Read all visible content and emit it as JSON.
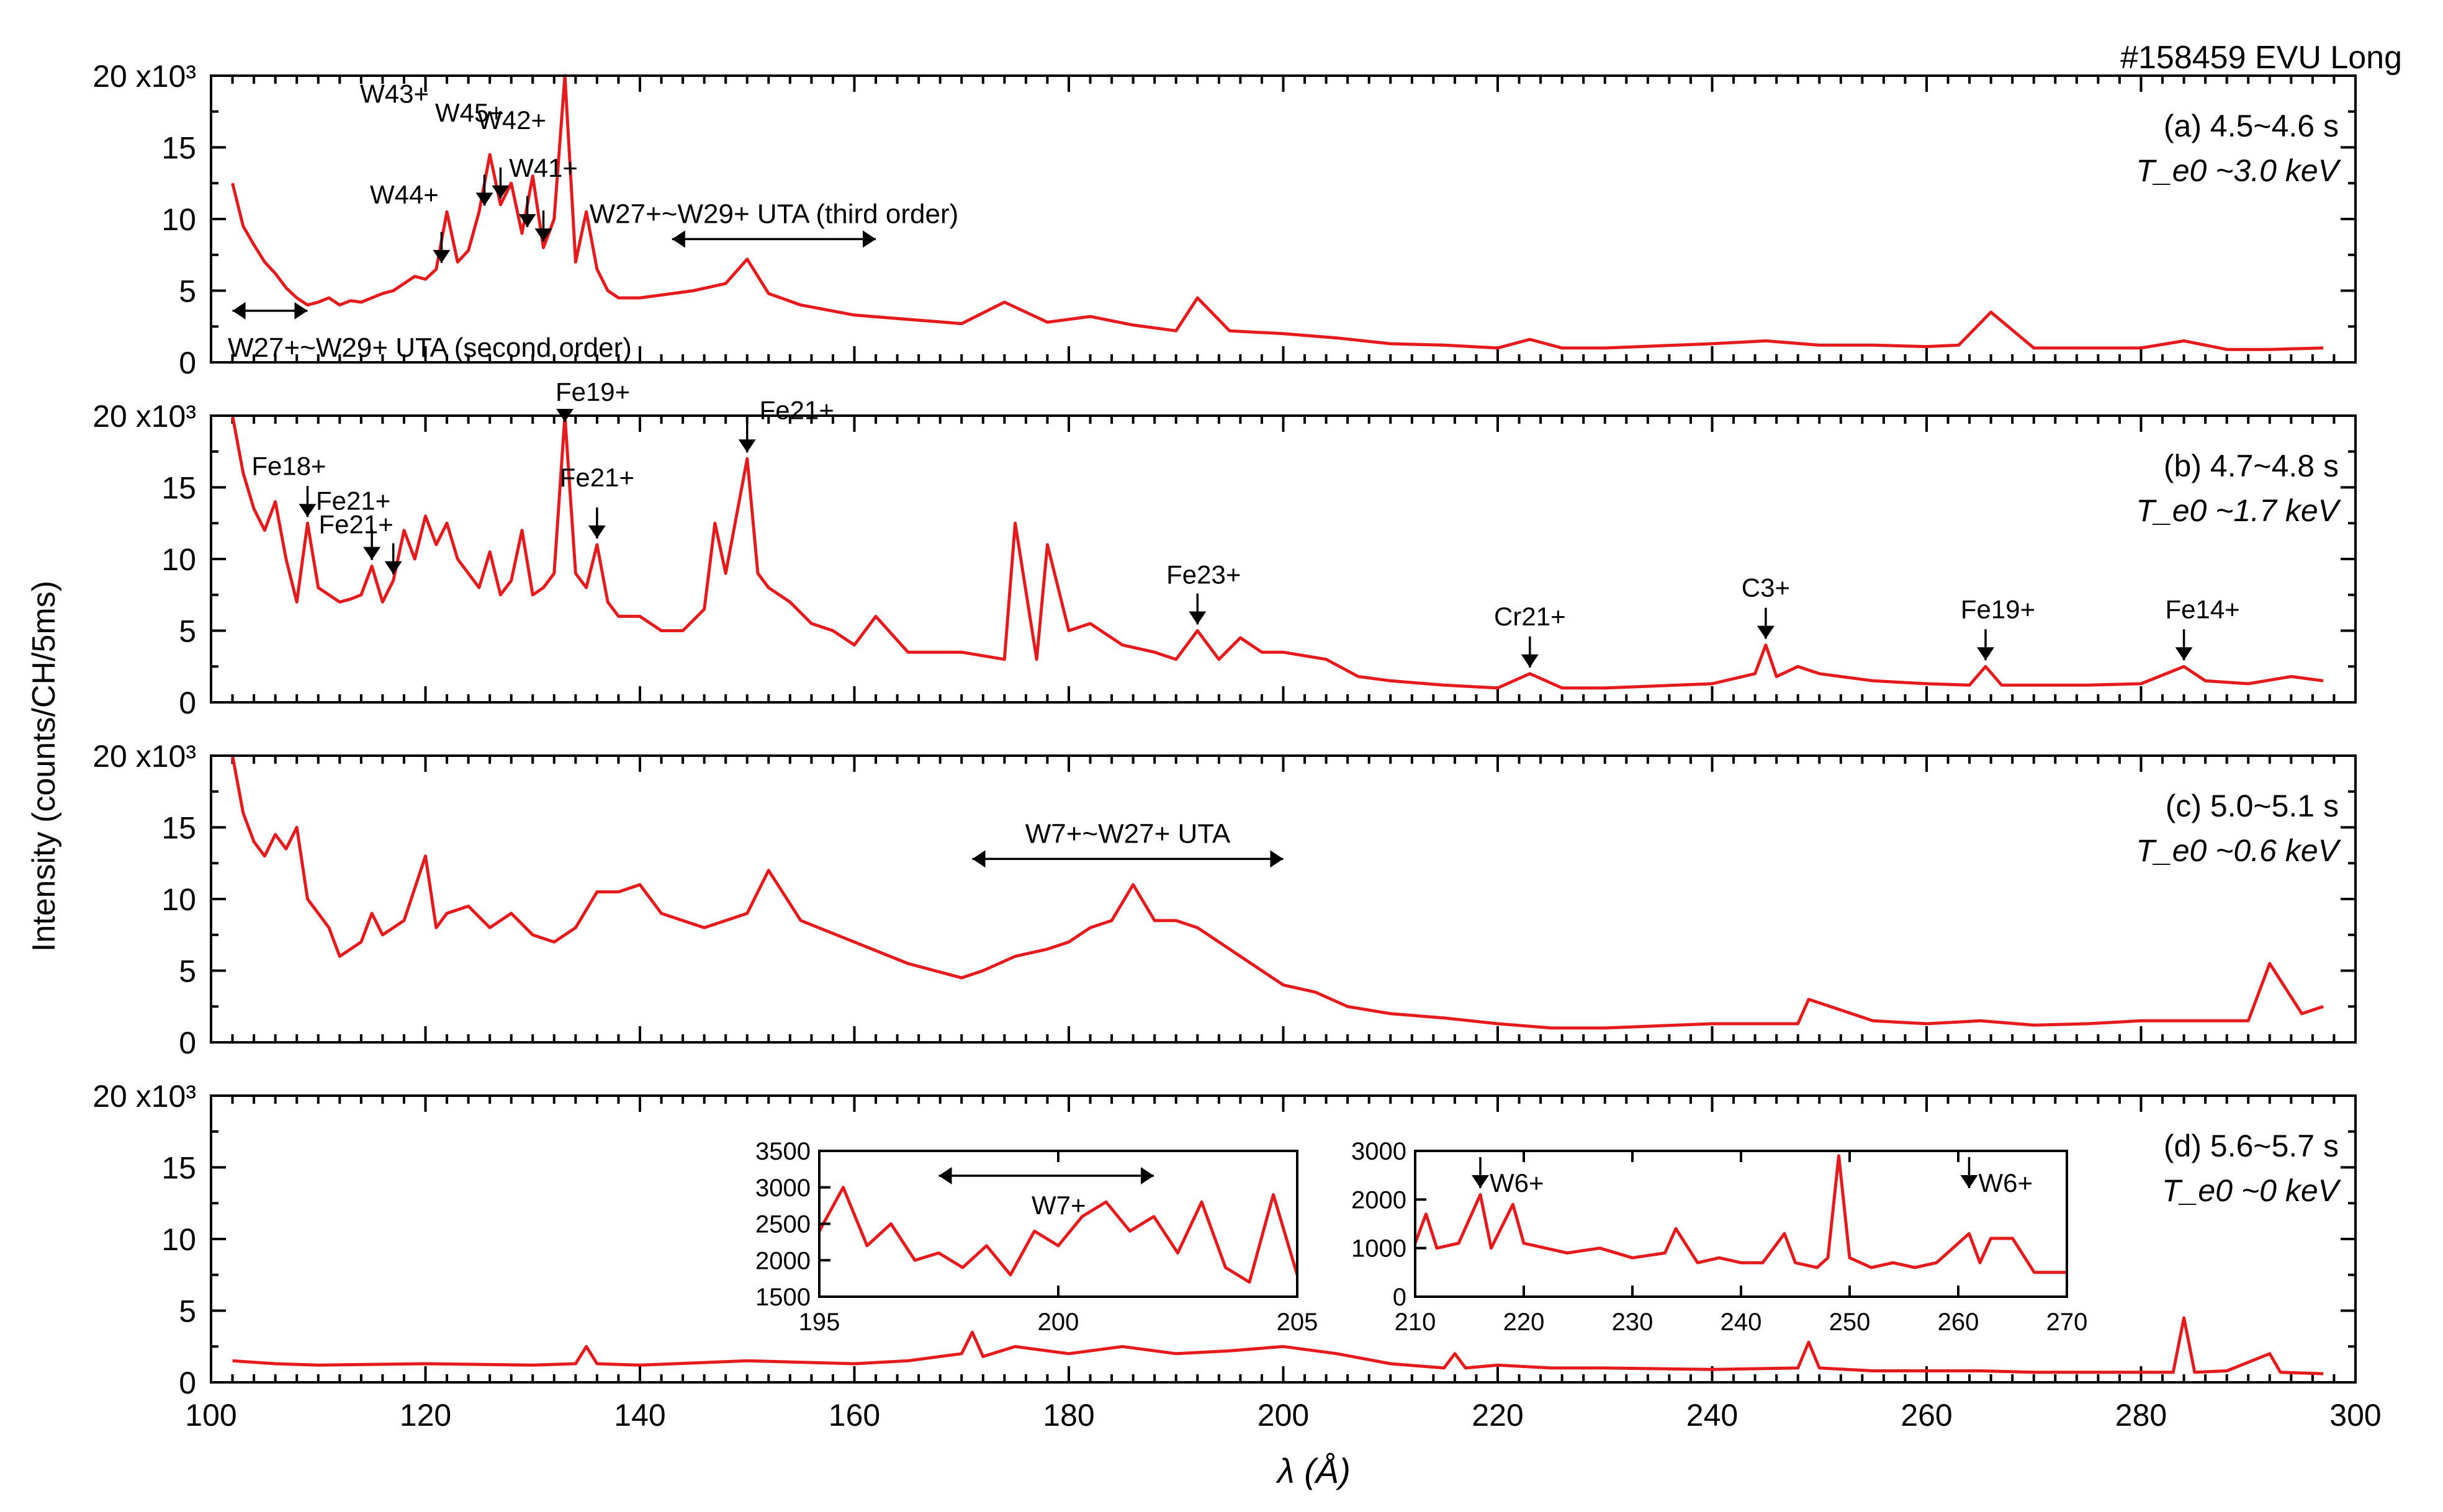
{
  "chart_data": {
    "type": "line",
    "shot_label": "#158459 EVU Long",
    "shared_x": {
      "label": "λ (Å)",
      "range": [
        100,
        300
      ],
      "ticks": [
        "100",
        "120",
        "140",
        "160",
        "180",
        "200",
        "220",
        "240",
        "260",
        "280",
        "300"
      ]
    },
    "shared_y_label": "Intensity (counts/CH/5ms)",
    "y_tick_labels": [
      "0",
      "5",
      "10",
      "15",
      "20 x10³"
    ],
    "y_range_thousands": [
      0,
      20
    ],
    "panels": [
      {
        "id": "a",
        "time_label": "(a) 4.5~4.6 s",
        "temp_label": "T_e0 ~3.0 keV",
        "series": {
          "name": "spectrum (a)",
          "x": [
            102,
            103,
            104,
            105,
            106,
            107,
            108,
            109,
            110,
            111,
            112,
            113,
            114,
            115,
            116,
            117,
            118,
            119,
            120,
            121,
            122,
            123,
            124,
            125,
            126,
            127,
            128,
            129,
            130,
            131,
            132,
            133,
            134,
            135,
            136,
            137,
            138,
            139,
            140,
            145,
            148,
            150,
            152,
            155,
            160,
            165,
            170,
            174,
            178,
            182,
            186,
            190,
            192,
            195,
            200,
            205,
            210,
            215,
            220,
            223,
            226,
            230,
            240,
            245,
            250,
            255,
            260,
            263,
            266,
            270,
            275,
            280,
            284,
            288,
            292,
            297
          ],
          "y": [
            12.5,
            9.5,
            8.2,
            7.0,
            6.2,
            5.2,
            4.5,
            4.0,
            4.2,
            4.5,
            4.0,
            4.3,
            4.2,
            4.5,
            4.8,
            5.0,
            5.5,
            6.0,
            5.8,
            6.5,
            10.5,
            7.0,
            7.8,
            10.5,
            14.5,
            11.0,
            12.5,
            9.0,
            13.0,
            8.0,
            10.0,
            20.0,
            7.0,
            10.5,
            6.5,
            5.0,
            4.5,
            4.5,
            4.5,
            5.0,
            5.5,
            7.2,
            4.8,
            4.0,
            3.3,
            3.0,
            2.7,
            4.2,
            2.8,
            3.2,
            2.6,
            2.2,
            4.5,
            2.2,
            2.0,
            1.7,
            1.3,
            1.2,
            1.0,
            1.6,
            1.0,
            1.0,
            1.3,
            1.5,
            1.2,
            1.2,
            1.1,
            1.2,
            3.5,
            1.0,
            1.0,
            1.0,
            1.5,
            0.9,
            0.9,
            1.0
          ]
        },
        "annotations": [
          {
            "text": "W41+",
            "x": 131
          },
          {
            "text": "W42+",
            "x": 129.5
          },
          {
            "text": "W45+",
            "x": 127
          },
          {
            "text": "W43+",
            "x": 125.5
          },
          {
            "text": "W44+",
            "x": 121.5
          },
          {
            "text": "W27+~W29+ UTA (third order)",
            "x_range": [
              143,
              162
            ]
          },
          {
            "text": "W27+~W29+ UTA (second order)",
            "x_range": [
              102,
              109
            ]
          }
        ]
      },
      {
        "id": "b",
        "time_label": "(b) 4.7~4.8 s",
        "temp_label": "T_e0 ~1.7 keV",
        "series": {
          "name": "spectrum (b)",
          "x": [
            102,
            103,
            104,
            105,
            106,
            107,
            108,
            109,
            110,
            111,
            112,
            113,
            114,
            115,
            116,
            117,
            118,
            119,
            120,
            121,
            122,
            123,
            124,
            125,
            126,
            127,
            128,
            129,
            130,
            131,
            132,
            133,
            134,
            135,
            136,
            137,
            138,
            140,
            142,
            144,
            146,
            147,
            148,
            149,
            150,
            151,
            152,
            154,
            156,
            158,
            160,
            162,
            165,
            170,
            174,
            175,
            177,
            178,
            180,
            182,
            185,
            188,
            190,
            192,
            194,
            196,
            198,
            200,
            204,
            207,
            210,
            215,
            220,
            223,
            226,
            230,
            240,
            244,
            245,
            246,
            248,
            250,
            255,
            260,
            264,
            265.5,
            267,
            270,
            275,
            280,
            284,
            286,
            290,
            294,
            297
          ],
          "y": [
            20.0,
            16.0,
            13.5,
            12.0,
            14.0,
            10.0,
            7.0,
            12.5,
            8.0,
            7.5,
            7.0,
            7.2,
            7.5,
            9.5,
            7.0,
            8.5,
            12.0,
            10.0,
            13.0,
            11.0,
            12.5,
            10.0,
            9.0,
            8.0,
            10.5,
            7.5,
            8.5,
            12.0,
            7.5,
            8.0,
            9.0,
            20.0,
            9.0,
            8.0,
            11.0,
            7.0,
            6.0,
            6.0,
            5.0,
            5.0,
            6.5,
            12.5,
            9.0,
            13.0,
            17.0,
            9.0,
            8.0,
            7.0,
            5.5,
            5.0,
            4.0,
            6.0,
            3.5,
            3.5,
            3.0,
            12.5,
            3.0,
            11.0,
            5.0,
            5.5,
            4.0,
            3.5,
            3.0,
            5.0,
            3.0,
            4.5,
            3.5,
            3.5,
            3.0,
            1.8,
            1.5,
            1.2,
            1.0,
            2.0,
            1.0,
            1.0,
            1.3,
            2.0,
            4.0,
            1.8,
            2.5,
            2.0,
            1.5,
            1.3,
            1.2,
            2.5,
            1.2,
            1.2,
            1.2,
            1.3,
            2.5,
            1.5,
            1.3,
            1.8,
            1.5
          ]
        },
        "annotations": [
          {
            "text": "Fe19+",
            "x": 133
          },
          {
            "text": "Fe21+",
            "x": 150
          },
          {
            "text": "Fe18+",
            "x": 109
          },
          {
            "text": "Fe21+",
            "x": 117
          },
          {
            "text": "Fe21+",
            "x": 115
          },
          {
            "text": "Fe21+",
            "x": 136
          },
          {
            "text": "Fe23+",
            "x": 192
          },
          {
            "text": "Cr21+",
            "x": 223
          },
          {
            "text": "C3+",
            "x": 245
          },
          {
            "text": "Fe19+",
            "x": 265.5
          },
          {
            "text": "Fe14+",
            "x": 284
          }
        ]
      },
      {
        "id": "c",
        "time_label": "(c) 5.0~5.1 s",
        "temp_label": "T_e0 ~0.6 keV",
        "series": {
          "name": "spectrum (c)",
          "x": [
            102,
            103,
            104,
            105,
            106,
            107,
            108,
            109,
            110,
            111,
            112,
            113,
            114,
            115,
            116,
            118,
            120,
            121,
            122,
            124,
            126,
            128,
            130,
            132,
            134,
            136,
            138,
            140,
            142,
            144,
            146,
            148,
            150,
            152,
            155,
            160,
            165,
            170,
            172,
            175,
            178,
            180,
            182,
            184,
            186,
            188,
            190,
            192,
            195,
            198,
            200,
            203,
            206,
            210,
            215,
            220,
            225,
            230,
            240,
            248,
            249,
            255,
            260,
            265,
            270,
            275,
            280,
            285,
            290,
            292,
            295,
            297
          ],
          "y": [
            20.0,
            16.0,
            14.0,
            13.0,
            14.5,
            13.5,
            15.0,
            10.0,
            9.0,
            8.0,
            6.0,
            6.5,
            7.0,
            9.0,
            7.5,
            8.5,
            13.0,
            8.0,
            9.0,
            9.5,
            8.0,
            9.0,
            7.5,
            7.0,
            8.0,
            10.5,
            10.5,
            11.0,
            9.0,
            8.5,
            8.0,
            8.5,
            9.0,
            12.0,
            8.5,
            7.0,
            5.5,
            4.5,
            5.0,
            6.0,
            6.5,
            7.0,
            8.0,
            8.5,
            11.0,
            8.5,
            8.5,
            8.0,
            6.5,
            5.0,
            4.0,
            3.5,
            2.5,
            2.0,
            1.7,
            1.3,
            1.0,
            1.0,
            1.3,
            1.3,
            3.0,
            1.5,
            1.3,
            1.5,
            1.2,
            1.3,
            1.5,
            1.5,
            1.5,
            5.5,
            2.0,
            2.5
          ]
        },
        "annotations": [
          {
            "text": "W7+~W27+ UTA",
            "x_range": [
              171,
              200
            ]
          }
        ]
      },
      {
        "id": "d",
        "time_label": "(d) 5.6~5.7 s",
        "temp_label": "T_e0 ~0 keV",
        "series": {
          "name": "spectrum (d)",
          "x": [
            102,
            106,
            110,
            120,
            130,
            134,
            135,
            136,
            140,
            150,
            160,
            165,
            170,
            171,
            172,
            175,
            180,
            185,
            190,
            195,
            200,
            205,
            210,
            215,
            216,
            217,
            220,
            225,
            230,
            240,
            248,
            249,
            250,
            255,
            260,
            265,
            270,
            275,
            280,
            283,
            284,
            285,
            288,
            292,
            293,
            297
          ],
          "y": [
            1.5,
            1.3,
            1.2,
            1.3,
            1.2,
            1.3,
            2.5,
            1.3,
            1.2,
            1.5,
            1.3,
            1.5,
            2.0,
            3.5,
            1.8,
            2.5,
            2.0,
            2.5,
            2.0,
            2.2,
            2.5,
            2.0,
            1.3,
            1.0,
            2.0,
            1.0,
            1.2,
            1.0,
            1.0,
            0.9,
            1.0,
            2.8,
            1.0,
            0.8,
            0.8,
            0.8,
            0.7,
            0.7,
            0.7,
            0.7,
            4.5,
            0.7,
            0.8,
            2.0,
            0.7,
            0.6
          ]
        },
        "annotations": [],
        "insets": [
          {
            "id": "inset-1",
            "x_range": [
              195,
              205
            ],
            "y_range": [
              1500,
              3500
            ],
            "x_ticks": [
              "195",
              "200",
              "205"
            ],
            "y_ticks": [
              "1500",
              "2000",
              "2500",
              "3000",
              "3500"
            ],
            "annotation": {
              "text": "W7+",
              "x_range": [
                197.5,
                202
              ]
            },
            "series": {
              "name": "inset spectrum 195-205",
              "x": [
                195,
                195.5,
                196,
                196.5,
                197,
                197.5,
                198,
                198.5,
                199,
                199.5,
                200,
                200.5,
                201,
                201.5,
                202,
                202.5,
                203,
                203.5,
                204,
                204.5,
                205
              ],
              "y": [
                2400,
                3000,
                2200,
                2500,
                2000,
                2100,
                1900,
                2200,
                1800,
                2400,
                2200,
                2600,
                2800,
                2400,
                2600,
                2100,
                2800,
                1900,
                1700,
                2900,
                1800
              ]
            }
          },
          {
            "id": "inset-2",
            "x_range": [
              210,
              270
            ],
            "y_range": [
              0,
              3000
            ],
            "x_ticks": [
              "210",
              "220",
              "230",
              "240",
              "250",
              "260",
              "270"
            ],
            "y_ticks": [
              "0",
              "1000",
              "2000",
              "3000"
            ],
            "annotations": [
              {
                "text": "W6+",
                "x": 216
              },
              {
                "text": "W6+",
                "x": 261
              }
            ],
            "series": {
              "name": "inset spectrum 210-270",
              "x": [
                210,
                211,
                212,
                214,
                216,
                217,
                219,
                220,
                222,
                224,
                227,
                230,
                233,
                234,
                236,
                238,
                240,
                242,
                244,
                245,
                247,
                248,
                249,
                250,
                252,
                254,
                256,
                258,
                261,
                262,
                263,
                265,
                267,
                270
              ],
              "y": [
                1100,
                1700,
                1000,
                1100,
                2100,
                1000,
                1900,
                1100,
                1000,
                900,
                1000,
                800,
                900,
                1400,
                700,
                800,
                700,
                700,
                1300,
                700,
                600,
                800,
                2900,
                800,
                600,
                700,
                600,
                700,
                1300,
                700,
                1200,
                1200,
                500,
                500
              ]
            }
          }
        ]
      }
    ]
  }
}
